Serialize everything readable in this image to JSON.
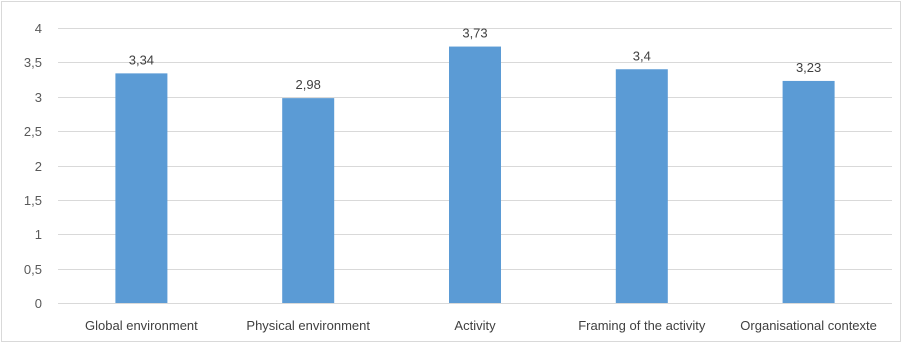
{
  "chart_data": {
    "type": "bar",
    "categories": [
      "Global environment",
      "Physical environment",
      "Activity",
      "Framing of the activity",
      "Organisational contexte"
    ],
    "values": [
      3.34,
      2.98,
      3.73,
      3.4,
      3.23
    ],
    "data_labels": [
      "3,34",
      "2,98",
      "3,73",
      "3,4",
      "3,23"
    ],
    "y_ticks": [
      0,
      0.5,
      1,
      1.5,
      2,
      2.5,
      3,
      3.5,
      4
    ],
    "y_tick_labels": [
      "0",
      "0,5",
      "1",
      "1,5",
      "2",
      "2,5",
      "3",
      "3,5",
      "4"
    ],
    "ylim": [
      0,
      4
    ],
    "title": "",
    "xlabel": "",
    "ylabel": "",
    "grid": true,
    "legend": "none",
    "bar_color": "#5b9bd5",
    "grid_color": "#d9d9d9"
  }
}
